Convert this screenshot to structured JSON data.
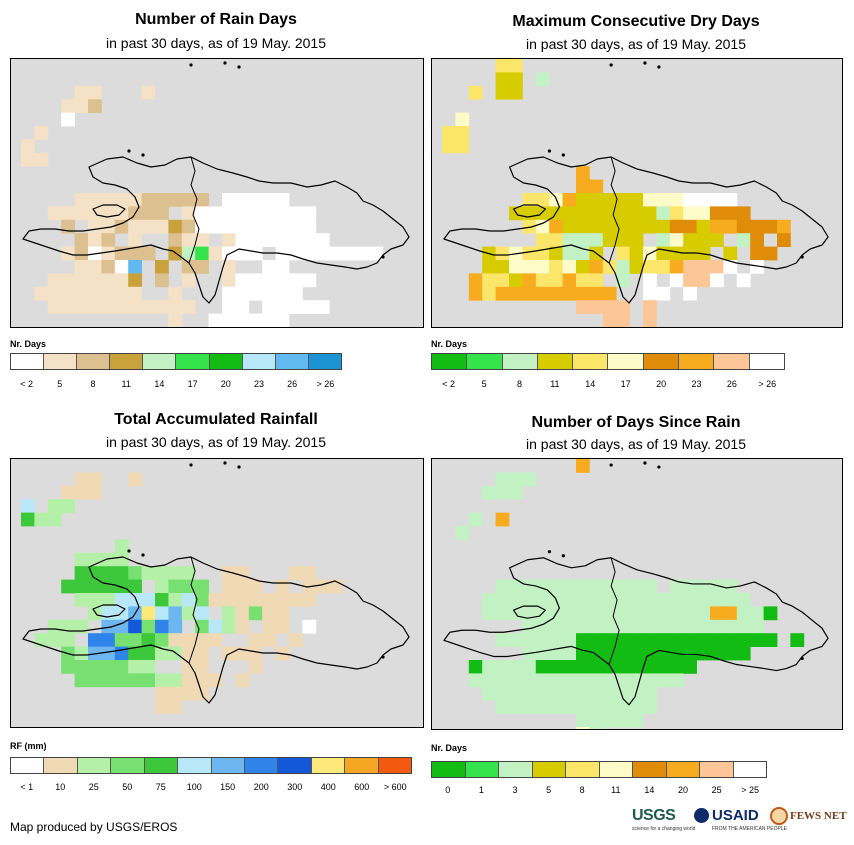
{
  "credit": "Map produced by USGS/EROS",
  "logos": {
    "usgs": "USGS",
    "usgs_tagline": "science for a changing world",
    "usaid": "USAID",
    "usaid_tagline": "FROM THE AMERICAN PEOPLE",
    "fews": "FEWS NET"
  },
  "panels": [
    {
      "id": "rain-days",
      "title": "Number of Rain Days",
      "subtitle": "in past 30 days, as of 19 May. 2015",
      "legend_title": "Nr. Days",
      "colors": [
        "#ffffff",
        "#f4e1c6",
        "#ddc090",
        "#c9a23c",
        "#c2f2c4",
        "#35e34a",
        "#12bc12",
        "#b6e8f8",
        "#62b9ef",
        "#1c93d2"
      ],
      "ticks": [
        "< 2",
        "5",
        "8",
        "11",
        "14",
        "17",
        "20",
        "23",
        "26",
        "> 26"
      ],
      "grid": [
        "................",
        ".......................",
        "....11...1.....",
        "...112...",
        "...0.......",
        ".1.......",
        "1..........",
        "11...........",
        "................",
        "",
        "....1111122222.00000",
        "..111111222.1000000000",
        "...2.11211132000000000",
        "....212.1..211.10000000",
        "...1201222.3451000.00000000",
        "....11208.3.22.1..00",
        "..1111113.2.1..1000000",
        ".11111111..1...000000",
        "..11111111111..00.00000",
        "...........1..000000",
        ".............0000000.."
      ]
    },
    {
      "id": "dry-days",
      "title": "Maximum Consecutive Dry Days",
      "subtitle": "in past 30 days, as of 19 May. 2015",
      "legend_title": "Nr. Days",
      "colors": [
        "#12bc12",
        "#35e34a",
        "#c2f2c4",
        "#d7cc00",
        "#fce66a",
        "#fdfbc8",
        "#e08c0b",
        "#f7ab1e",
        "#fcc696",
        "#ffffff"
      ],
      "ticks": [
        "< 2",
        "5",
        "8",
        "11",
        "14",
        "17",
        "20",
        "23",
        "26",
        "> 26"
      ],
      "grid": [
        "....44...",
        "....33.2...",
        "..4.33...",
        "",
        ".5...",
        "44.......",
        "44.......",
        "",
        "..........7....",
        "..........77.........",
        "......4457333335559999",
        ".....333333333332455666",
        "......45733333333663776667",
        ".......44222333.25333.26.6",
        "...345443223.4353333.3.66",
        "...3355545374234478889.9",
        "..7443744744.2.9.9889.9.",
        "..74777777777..99.9.",
        "..........8888.8......",
        "............88.8",
        "...........777"
      ]
    },
    {
      "id": "rainfall",
      "title": "Total Accumulated Rainfall",
      "subtitle": "in past 30 days, as of 19 May. 2015",
      "legend_title": "RF (mm)",
      "colors": [
        "#ffffff",
        "#f0d9b5",
        "#b4f0a8",
        "#78e070",
        "#3dc83c",
        "#b8e8f8",
        "#6db6f0",
        "#2e84e8",
        "#1258d8",
        "#fde87a",
        "#f5a623",
        "#f45a0f"
      ],
      "ticks": [
        "< 1",
        "10",
        "25",
        "50",
        "75",
        "100",
        "150",
        "200",
        "300",
        "400",
        "600",
        "> 600"
      ],
      "grid": [
        "............",
        "....11..1",
        "...111..",
        "5.22",
        "422.",
        "",
        ".......2.",
        "....2222.......",
        "....444432222..11...11",
        "...444444.2333.111.1.111",
        "....222555425311111111.",
        ".....255695625.21311.",
        "..222.668376.3521.11.0",
        ".222.7733431111..11.1",
        "...32667442211.111.1.",
        "...3333322..11...1..",
        "....33333322111.1",
        "..........1111",
        "..........11",
        "...........",
        "..........."
      ]
    },
    {
      "id": "days-since-rain",
      "title": "Number of Days Since Rain",
      "subtitle": "in past 30 days, as of 19 May. 2015",
      "legend_title": "Nr. Days",
      "colors": [
        "#12bc12",
        "#35e34a",
        "#c2f2c4",
        "#d7cc00",
        "#fce66a",
        "#fdfbc8",
        "#e08c0b",
        "#f7ab1e",
        "#fcc696",
        "#ffffff"
      ],
      "ticks": [
        "0",
        "1",
        "3",
        "5",
        "8",
        "11",
        "14",
        "20",
        "25",
        "> 25"
      ],
      "grid": [
        "..........7",
        "....222...",
        "...222...",
        "......",
        "..2.7.",
        ".2.",
        "...",
        "",
        "..........",
        "....222222222222.22222",
        "...22222222222222222222",
        "...2222222222222222277220",
        "......222222222222222222.",
        "....222222000000000000000.0",
        "......22220000000000000",
        "..02222000000000000.",
        "..2222222222222222",
        "...2222222222222",
        "....222222222222",
        "..........22222",
        "..........52"
      ]
    }
  ]
}
